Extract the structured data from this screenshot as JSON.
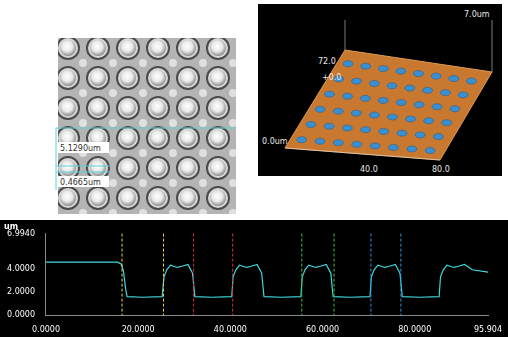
{
  "micrograph": {
    "measurements": [
      "5.1290um",
      "0.4665um"
    ]
  },
  "surface_3d": {
    "labels": [
      "72.0",
      "7.0um",
      "+0.0",
      "0.0um",
      "40.0",
      "80.0"
    ]
  },
  "chart_data": {
    "type": "line",
    "y_label": "um",
    "color": "#40d8e0",
    "grid": false,
    "xlim": [
      0,
      95.904
    ],
    "xticks": [
      {
        "value": 0,
        "label": "0.0000"
      },
      {
        "value": 20,
        "label": "20.0000"
      },
      {
        "value": 40,
        "label": "40.0000"
      },
      {
        "value": 60,
        "label": "60.0000"
      },
      {
        "value": 80,
        "label": "80.0000"
      },
      95.904
    ],
    "ylim": [
      0,
      6.994
    ],
    "yticks": [
      {
        "value": 0,
        "label": "0.0000"
      },
      {
        "value": 2,
        "label": "2.0000"
      },
      {
        "value": 4,
        "label": "4.0000"
      },
      {
        "value": 6.994,
        "label": "6.9940"
      }
    ],
    "x": [
      0,
      10,
      15.5,
      16.3,
      16.8,
      17.3,
      17.6,
      21,
      25.2,
      25.6,
      26.2,
      27,
      28.5,
      29.5,
      30.8,
      31.8,
      32.3,
      36,
      40.3,
      40.6,
      41.2,
      42,
      43.5,
      44.5,
      45.8,
      46.8,
      47.3,
      51,
      55.3,
      55.6,
      56.2,
      57,
      58.5,
      59.5,
      60.8,
      61.8,
      62.3,
      66,
      70.3,
      70.6,
      71.2,
      72,
      73.5,
      74.5,
      75.8,
      76.8,
      77.3,
      81,
      85.3,
      85.6,
      86.2,
      87,
      88.5,
      89.5,
      90.8,
      92.5,
      95.904
    ],
    "values": [
      4.55,
      4.55,
      4.55,
      4.4,
      3.8,
      2.2,
      1.6,
      1.55,
      1.6,
      3.3,
      3.9,
      4.3,
      4.1,
      4.2,
      4.35,
      3.6,
      1.6,
      1.55,
      1.6,
      3.3,
      3.9,
      4.3,
      4.1,
      4.2,
      4.35,
      3.6,
      1.6,
      1.55,
      1.6,
      3.3,
      3.9,
      4.3,
      4.1,
      4.2,
      4.35,
      3.6,
      1.6,
      1.55,
      1.6,
      3.3,
      3.9,
      4.3,
      4.1,
      4.2,
      4.35,
      3.6,
      1.6,
      1.55,
      1.6,
      3.3,
      3.9,
      4.3,
      4.1,
      4.2,
      4.35,
      3.9,
      3.7
    ],
    "cursors": [
      {
        "x": 16.5,
        "color": "#e8d84a"
      },
      {
        "x": 25.5,
        "color": "#e8d84a"
      },
      {
        "x": 32,
        "color": "#d03040"
      },
      {
        "x": 40.5,
        "color": "#d03040"
      },
      {
        "x": 55.5,
        "color": "#40c040"
      },
      {
        "x": 62.5,
        "color": "#40c040"
      },
      {
        "x": 70.5,
        "color": "#3090e0"
      },
      {
        "x": 77,
        "color": "#3090e0"
      }
    ]
  }
}
